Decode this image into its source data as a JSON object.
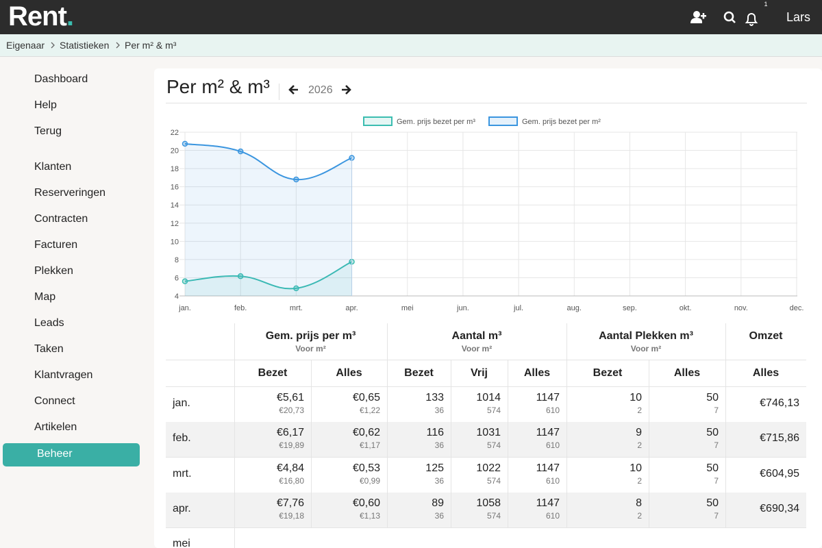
{
  "header": {
    "logo": "Rent",
    "notifications": "1",
    "user": "Lars"
  },
  "breadcrumb": [
    "Eigenaar",
    "Statistieken",
    "Per m² & m³"
  ],
  "sidebar": {
    "items": [
      "Dashboard",
      "Help",
      "Terug",
      "Klanten",
      "Reserveringen",
      "Contracten",
      "Facturen",
      "Plekken",
      "Map",
      "Leads",
      "Taken",
      "Klantvragen",
      "Connect",
      "Artikelen",
      "Beheer"
    ],
    "active": "Beheer"
  },
  "page": {
    "title": "Per m² & m³",
    "year": "2026"
  },
  "chart_data": {
    "type": "line",
    "categories": [
      "jan.",
      "feb.",
      "mrt.",
      "apr.",
      "mei",
      "jun.",
      "jul.",
      "aug.",
      "sep.",
      "okt.",
      "nov.",
      "dec."
    ],
    "series": [
      {
        "name": "Gem. prijs bezet per m³",
        "color": "#3bbdb0",
        "values": [
          5.61,
          6.17,
          4.84,
          7.76,
          null,
          null,
          null,
          null,
          null,
          null,
          null,
          null
        ]
      },
      {
        "name": "Gem. prijs bezet per m²",
        "color": "#3a95df",
        "values": [
          20.73,
          19.89,
          16.8,
          19.18,
          null,
          null,
          null,
          null,
          null,
          null,
          null,
          null
        ]
      }
    ],
    "ylim": [
      4,
      22
    ],
    "yticks": [
      4,
      6,
      8,
      10,
      12,
      14,
      16,
      18,
      20,
      22
    ],
    "grid": true,
    "legend": "top"
  },
  "table": {
    "groups": [
      {
        "title": "Gem. prijs per m³",
        "sub": "Voor m²"
      },
      {
        "title": "Aantal m³",
        "sub": "Voor m²"
      },
      {
        "title": "Aantal Plekken m³",
        "sub": "Voor m²"
      },
      {
        "title": "Omzet"
      }
    ],
    "columns": [
      "Bezet",
      "Alles",
      "Bezet",
      "Vrij",
      "Alles",
      "Bezet",
      "Alles",
      "Alles"
    ],
    "rows": [
      {
        "label": "jan.",
        "cells": [
          [
            "€5,61",
            "€20,73"
          ],
          [
            "€0,65",
            "€1,22"
          ],
          [
            "133",
            "36"
          ],
          [
            "1014",
            "574"
          ],
          [
            "1147",
            "610"
          ],
          [
            "10",
            "2"
          ],
          [
            "50",
            "7"
          ],
          [
            "€746,13"
          ]
        ]
      },
      {
        "label": "feb.",
        "cells": [
          [
            "€6,17",
            "€19,89"
          ],
          [
            "€0,62",
            "€1,17"
          ],
          [
            "116",
            "36"
          ],
          [
            "1031",
            "574"
          ],
          [
            "1147",
            "610"
          ],
          [
            "9",
            "2"
          ],
          [
            "50",
            "7"
          ],
          [
            "€715,86"
          ]
        ]
      },
      {
        "label": "mrt.",
        "cells": [
          [
            "€4,84",
            "€16,80"
          ],
          [
            "€0,53",
            "€0,99"
          ],
          [
            "125",
            "36"
          ],
          [
            "1022",
            "574"
          ],
          [
            "1147",
            "610"
          ],
          [
            "10",
            "2"
          ],
          [
            "50",
            "7"
          ],
          [
            "€604,95"
          ]
        ]
      },
      {
        "label": "apr.",
        "cells": [
          [
            "€7,76",
            "€19,18"
          ],
          [
            "€0,60",
            "€1,13"
          ],
          [
            "89",
            "36"
          ],
          [
            "1058",
            "574"
          ],
          [
            "1147",
            "610"
          ],
          [
            "8",
            "2"
          ],
          [
            "50",
            "7"
          ],
          [
            "€690,34"
          ]
        ]
      },
      {
        "label": "mei"
      }
    ]
  }
}
